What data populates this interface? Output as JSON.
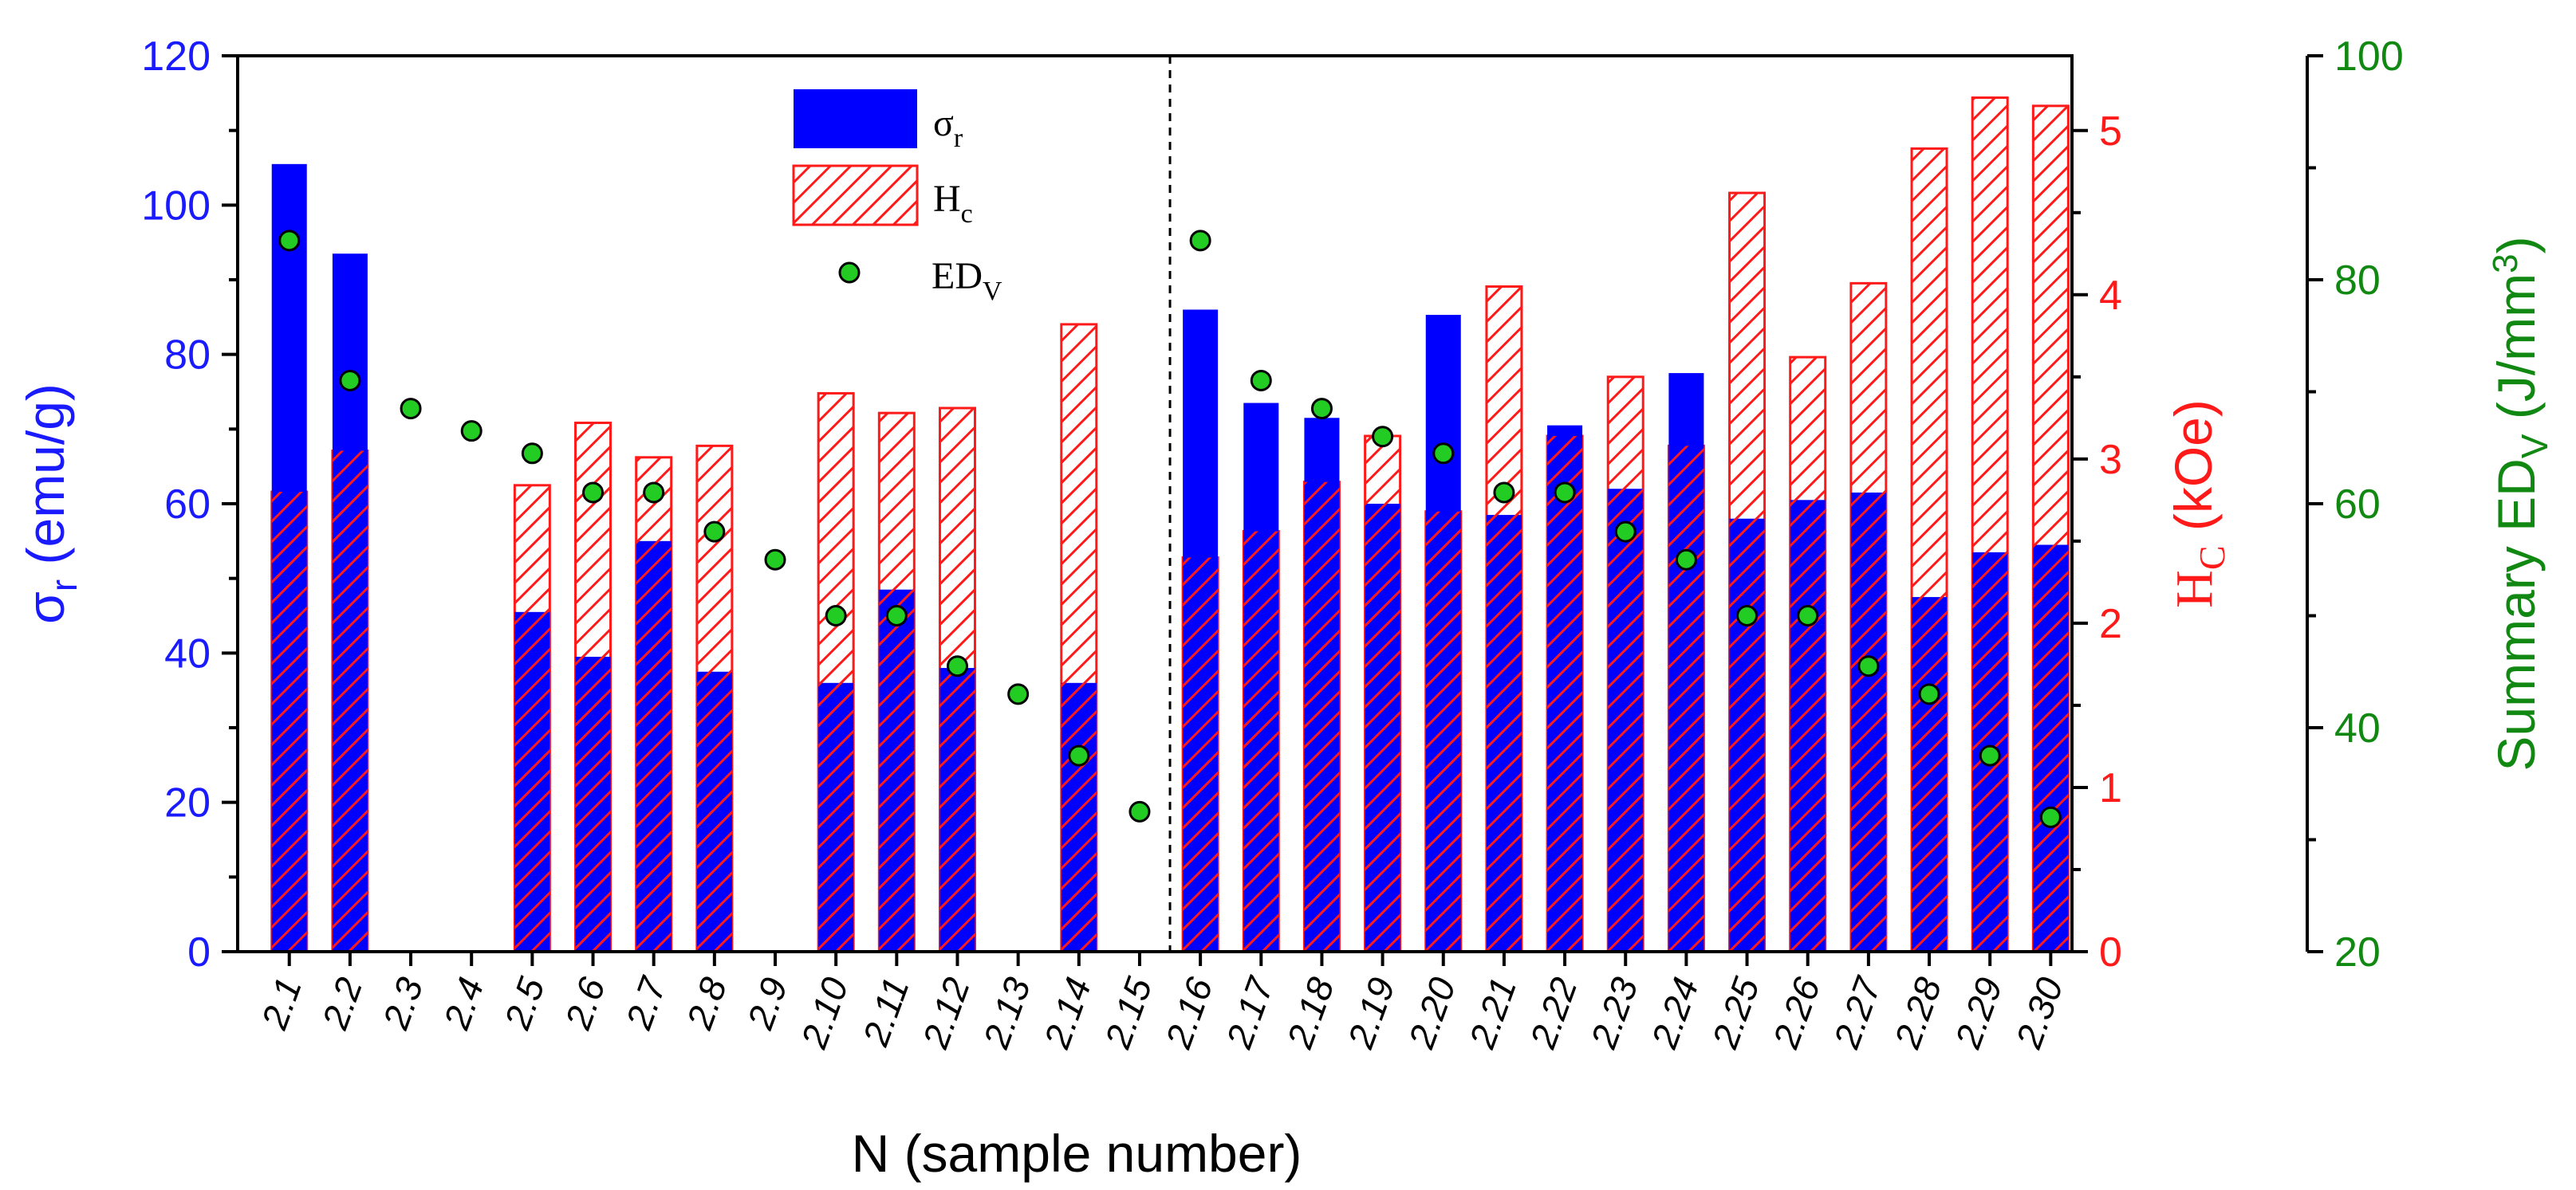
{
  "chart_data": {
    "type": "bar",
    "xlabel": "N (sample number)",
    "categories": [
      "2.1",
      "2.2",
      "2.3",
      "2.4",
      "2.5",
      "2.6",
      "2.7",
      "2.8",
      "2.9",
      "2.10",
      "2.11",
      "2.12",
      "2.13",
      "2.14",
      "2.15",
      "2.16",
      "2.17",
      "2.18",
      "2.19",
      "2.20",
      "2.21",
      "2.22",
      "2.23",
      "2.24",
      "2.25",
      "2.26",
      "2.27",
      "2.28",
      "2.29",
      "2.30"
    ],
    "divider_after_category": "2.15",
    "axes": {
      "left": {
        "label_main": "σ",
        "label_sub": "r",
        "label_tail": " (emu/g)",
        "ylim": [
          0,
          120
        ],
        "ticks": [
          0,
          20,
          40,
          60,
          80,
          100,
          120
        ],
        "color": "#1a1aff"
      },
      "right1": {
        "label_main": "H",
        "label_sub": "C",
        "label_tail": " (kOe)",
        "ylim": [
          0,
          5.455
        ],
        "ticks": [
          0,
          1,
          2,
          3,
          4,
          5
        ],
        "color": "#ff1a1a"
      },
      "right2": {
        "label_main": "Summary ED",
        "label_sub": "V",
        "label_tail": " (J/mm",
        "label_sup": "3",
        "label_end": ")",
        "ylim": [
          20,
          100
        ],
        "ticks": [
          20,
          40,
          60,
          80,
          100
        ],
        "color": "#118811"
      }
    },
    "series": [
      {
        "name": "σr",
        "legend_main": "σ",
        "legend_sub": "r",
        "axis": "left",
        "kind": "bar",
        "color": "#0000ff",
        "values": [
          105.5,
          93.5,
          0,
          0,
          45.5,
          39.5,
          55,
          37.5,
          0,
          36,
          48.5,
          38,
          0,
          36,
          0,
          86,
          73.5,
          71.5,
          60,
          85.3,
          58.5,
          70.5,
          62,
          77.5,
          58,
          60.5,
          61.5,
          47.5,
          53.5,
          54.5
        ]
      },
      {
        "name": "Hc",
        "legend_main": "H",
        "legend_sub": "c",
        "axis": "right1",
        "kind": "hatched-bar",
        "color": "#ff0000",
        "values": [
          2.8,
          3.05,
          0,
          0,
          2.84,
          3.22,
          3.01,
          3.08,
          0,
          3.4,
          3.28,
          3.31,
          0,
          3.82,
          0,
          2.4,
          2.56,
          2.86,
          3.14,
          2.68,
          4.05,
          3.14,
          3.5,
          3.08,
          4.62,
          3.62,
          4.07,
          4.89,
          5.2,
          5.15
        ]
      },
      {
        "name": "EDV",
        "legend_main": "ED",
        "legend_sub": "V",
        "axis": "right2",
        "kind": "scatter",
        "color": "#22cc22",
        "values": [
          83.5,
          71,
          68.5,
          66.5,
          64.5,
          61,
          61,
          57.5,
          55,
          50,
          50,
          45.5,
          43,
          37.5,
          32.5,
          83.5,
          71,
          68.5,
          66,
          64.5,
          61,
          61,
          57.5,
          55,
          50,
          50,
          45.5,
          43,
          37.5,
          32
        ]
      }
    ]
  }
}
